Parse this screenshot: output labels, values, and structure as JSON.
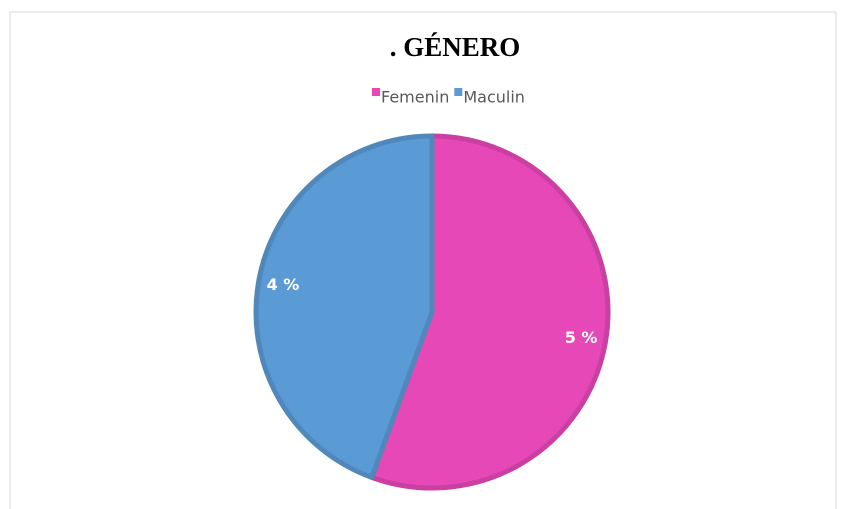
{
  "chart_data": {
    "type": "pie",
    "title": ". GÉNERO",
    "categories": [
      "Femenin",
      "Maculin"
    ],
    "values": [
      5,
      4
    ],
    "value_labels": [
      "5 %",
      "4 %"
    ],
    "colors": [
      "#e648b8",
      "#5b9bd5"
    ],
    "legend": "top"
  }
}
